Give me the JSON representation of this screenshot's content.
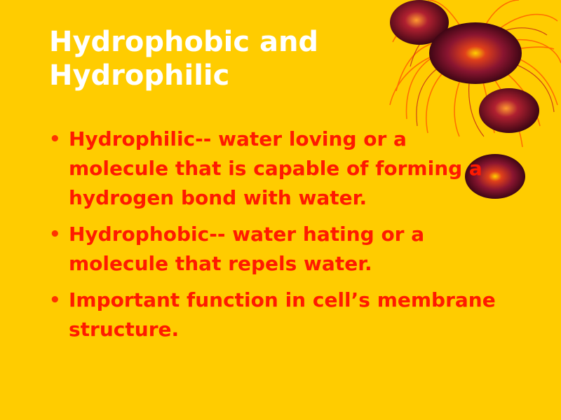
{
  "slide": {
    "title": "Hydrophobic and Hydrophilic",
    "bullet_char": "•",
    "bullets": [
      "Hydrophilic-- water loving or a molecule that is capable of forming a hydrogen bond with water.",
      "Hydrophobic-- water hating or a molecule that repels water.",
      "Important function in cell’s membrane structure."
    ]
  },
  "colors": {
    "background": "#FFCC00",
    "title": "#FFFFFF",
    "body_text": "#FF1A00",
    "sphere_dark": "#5A0A1E",
    "sphere_glow": "#FFD000",
    "tendrils": "#FF6600"
  },
  "decoration": {
    "icon": "radiating-spheres-graphic"
  }
}
